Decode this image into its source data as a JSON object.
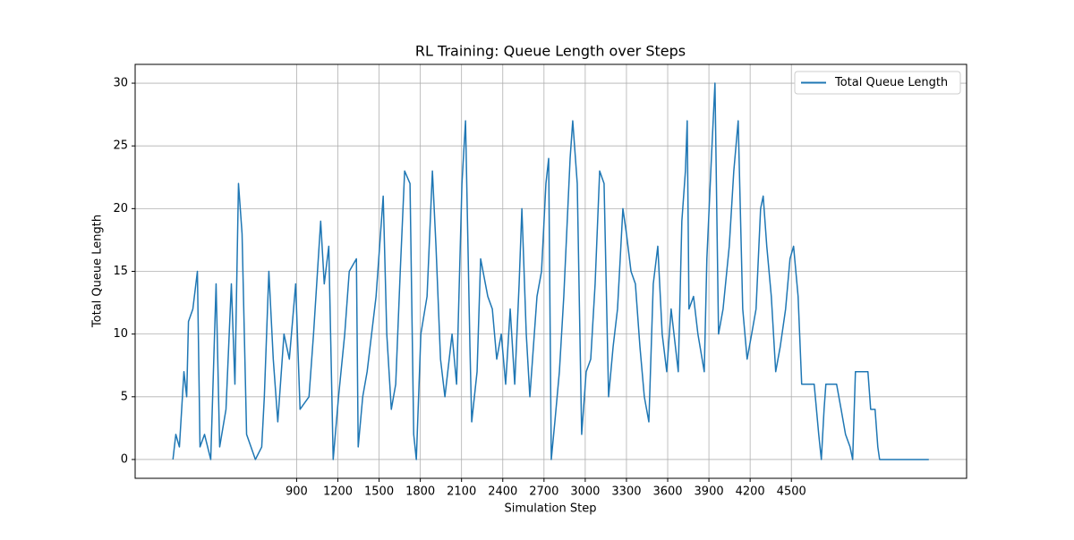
{
  "chart_data": {
    "type": "line",
    "title": "RL Training: Queue Length over Steps",
    "xlabel": "Simulation Step",
    "ylabel": "Total Queue Length",
    "x": [
      0,
      21,
      47,
      80,
      100,
      113,
      145,
      178,
      197,
      230,
      275,
      314,
      340,
      386,
      425,
      451,
      477,
      503,
      536,
      600,
      646,
      665,
      698,
      730,
      763,
      808,
      847,
      893,
      925,
      990,
      1023,
      1075,
      1101,
      1134,
      1166,
      1205,
      1250,
      1283,
      1335,
      1348,
      1381,
      1413,
      1478,
      1530,
      1556,
      1589,
      1621,
      1654,
      1686,
      1725,
      1752,
      1771,
      1804,
      1849,
      1888,
      1914,
      1947,
      1979,
      2031,
      2064,
      2103,
      2129,
      2161,
      2174,
      2213,
      2239,
      2291,
      2324,
      2356,
      2389,
      2421,
      2454,
      2487,
      2519,
      2539,
      2571,
      2597,
      2649,
      2682,
      2714,
      2734,
      2753,
      2779,
      2812,
      2844,
      2890,
      2909,
      2942,
      2974,
      3007,
      3040,
      3072,
      3105,
      3137,
      3170,
      3203,
      3235,
      3274,
      3300,
      3333,
      3365,
      3398,
      3430,
      3463,
      3495,
      3528,
      3560,
      3593,
      3625,
      3677,
      3703,
      3729,
      3742,
      3755,
      3788,
      3820,
      3866,
      3885,
      3918,
      3944,
      3970,
      4003,
      4048,
      4081,
      4113,
      4146,
      4178,
      4211,
      4243,
      4276,
      4295,
      4321,
      4354,
      4386,
      4419,
      4458,
      4490,
      4516,
      4549,
      4575,
      4666,
      4699,
      4718,
      4738,
      4751,
      4829,
      4862,
      4894,
      4927,
      4946,
      4966,
      5057,
      5077,
      5109,
      5129,
      5142,
      5500
    ],
    "series": [
      {
        "name": "Total Queue Length",
        "color": "#1f77b4",
        "values": [
          0,
          2,
          1,
          7,
          5,
          11,
          12,
          15,
          1,
          2,
          0,
          14,
          1,
          4,
          14,
          6,
          22,
          18,
          2,
          0,
          1,
          5,
          15,
          8,
          3,
          10,
          8,
          14,
          4,
          5,
          10,
          19,
          14,
          17,
          0,
          5,
          10,
          15,
          16,
          1,
          5,
          7,
          13,
          21,
          10,
          4,
          6,
          15,
          23,
          22,
          2,
          0,
          10,
          13,
          23,
          17,
          8,
          5,
          10,
          6,
          22,
          27,
          9,
          3,
          7,
          16,
          13,
          12,
          8,
          10,
          6,
          12,
          6,
          14,
          20,
          10,
          5,
          13,
          15,
          22,
          24,
          0,
          3,
          7,
          13,
          24,
          27,
          22,
          2,
          7,
          8,
          14,
          23,
          22,
          5,
          9,
          12,
          20,
          18,
          15,
          14,
          9,
          5,
          3,
          14,
          17,
          10,
          7,
          12,
          7,
          19,
          23,
          27,
          12,
          13,
          10,
          7,
          16,
          24,
          30,
          10,
          12,
          17,
          23,
          27,
          12,
          8,
          10,
          12,
          20,
          21,
          17,
          13,
          7,
          9,
          12,
          16,
          17,
          13,
          6,
          6,
          2,
          0,
          4,
          6,
          6,
          4,
          2,
          1,
          0,
          7,
          7,
          4,
          4,
          1,
          0,
          0
        ]
      }
    ],
    "xlim": [
      -275,
      5775
    ],
    "ylim": [
      -1.5,
      31.5
    ],
    "xticks": [
      900,
      1200,
      1500,
      1800,
      2100,
      2400,
      2700,
      3000,
      3300,
      3600,
      3900,
      4200,
      4500
    ],
    "yticks": [
      0,
      5,
      10,
      15,
      20,
      25,
      30
    ],
    "grid": true,
    "legend": "upper right"
  }
}
